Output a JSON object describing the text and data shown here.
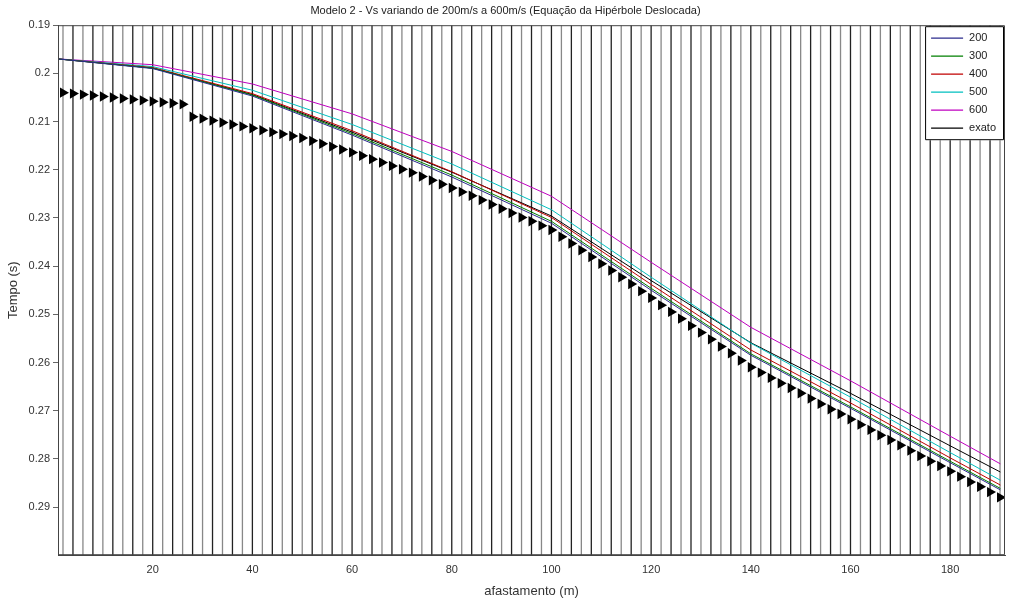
{
  "chart_data": {
    "type": "line",
    "title": "Modelo 2 - Vs variando de 200m/s a 600m/s (Equação da Hipérbole Deslocada)",
    "xlabel": "afastamento (m)",
    "ylabel": "Tempo (s)",
    "xlim": [
      1,
      191
    ],
    "xticks": [
      20,
      40,
      60,
      80,
      100,
      120,
      140,
      160,
      180
    ],
    "ylim": [
      0.3,
      0.19
    ],
    "yticks": [
      0.19,
      0.2,
      0.21,
      0.22,
      0.23,
      0.24,
      0.25,
      0.26,
      0.27,
      0.28,
      0.29
    ],
    "ref_lines": [
      {
        "axis": "x",
        "value": 2,
        "color": "#888888"
      },
      {
        "axis": "x",
        "value": 4,
        "color": "#222222"
      },
      {
        "axis": "x",
        "value": 6,
        "color": "#888888"
      },
      {
        "axis": "x",
        "value": 8,
        "color": "#222222"
      },
      {
        "axis": "x",
        "value": 10,
        "color": "#888888"
      },
      {
        "axis": "x",
        "value": 12,
        "color": "#222222"
      },
      {
        "axis": "x",
        "value": 14,
        "color": "#888888"
      },
      {
        "axis": "x",
        "value": 16,
        "color": "#222222"
      },
      {
        "axis": "x",
        "value": 18,
        "color": "#888888"
      },
      {
        "axis": "x",
        "value": 20,
        "color": "#222222"
      },
      {
        "axis": "x",
        "value": 22,
        "color": "#888888"
      },
      {
        "axis": "x",
        "value": 24,
        "color": "#222222"
      },
      {
        "axis": "x",
        "value": 26,
        "color": "#888888"
      },
      {
        "axis": "x",
        "value": 28,
        "color": "#222222"
      },
      {
        "axis": "x",
        "value": 30,
        "color": "#888888"
      },
      {
        "axis": "x",
        "value": 32,
        "color": "#222222"
      },
      {
        "axis": "x",
        "value": 34,
        "color": "#888888"
      },
      {
        "axis": "x",
        "value": 36,
        "color": "#222222"
      },
      {
        "axis": "x",
        "value": 38,
        "color": "#888888"
      },
      {
        "axis": "x",
        "value": 40,
        "color": "#222222"
      },
      {
        "axis": "x",
        "value": 42,
        "color": "#888888"
      },
      {
        "axis": "x",
        "value": 44,
        "color": "#222222"
      },
      {
        "axis": "x",
        "value": 46,
        "color": "#888888"
      },
      {
        "axis": "x",
        "value": 48,
        "color": "#222222"
      },
      {
        "axis": "x",
        "value": 50,
        "color": "#888888"
      },
      {
        "axis": "x",
        "value": 52,
        "color": "#222222"
      },
      {
        "axis": "x",
        "value": 54,
        "color": "#888888"
      },
      {
        "axis": "x",
        "value": 56,
        "color": "#222222"
      },
      {
        "axis": "x",
        "value": 58,
        "color": "#888888"
      },
      {
        "axis": "x",
        "value": 60,
        "color": "#222222"
      },
      {
        "axis": "x",
        "value": 62,
        "color": "#888888"
      },
      {
        "axis": "x",
        "value": 64,
        "color": "#222222"
      },
      {
        "axis": "x",
        "value": 66,
        "color": "#888888"
      },
      {
        "axis": "x",
        "value": 68,
        "color": "#222222"
      },
      {
        "axis": "x",
        "value": 70,
        "color": "#888888"
      },
      {
        "axis": "x",
        "value": 72,
        "color": "#222222"
      },
      {
        "axis": "x",
        "value": 74,
        "color": "#888888"
      },
      {
        "axis": "x",
        "value": 76,
        "color": "#222222"
      },
      {
        "axis": "x",
        "value": 78,
        "color": "#888888"
      },
      {
        "axis": "x",
        "value": 80,
        "color": "#222222"
      },
      {
        "axis": "x",
        "value": 82,
        "color": "#888888"
      },
      {
        "axis": "x",
        "value": 84,
        "color": "#222222"
      },
      {
        "axis": "x",
        "value": 86,
        "color": "#888888"
      },
      {
        "axis": "x",
        "value": 88,
        "color": "#222222"
      },
      {
        "axis": "x",
        "value": 90,
        "color": "#888888"
      },
      {
        "axis": "x",
        "value": 92,
        "color": "#222222"
      },
      {
        "axis": "x",
        "value": 94,
        "color": "#888888"
      },
      {
        "axis": "x",
        "value": 96,
        "color": "#222222"
      },
      {
        "axis": "x",
        "value": 98,
        "color": "#888888"
      },
      {
        "axis": "x",
        "value": 100,
        "color": "#222222"
      },
      {
        "axis": "x",
        "value": 102,
        "color": "#888888"
      },
      {
        "axis": "x",
        "value": 104,
        "color": "#222222"
      },
      {
        "axis": "x",
        "value": 106,
        "color": "#888888"
      },
      {
        "axis": "x",
        "value": 108,
        "color": "#222222"
      },
      {
        "axis": "x",
        "value": 110,
        "color": "#888888"
      },
      {
        "axis": "x",
        "value": 112,
        "color": "#222222"
      },
      {
        "axis": "x",
        "value": 114,
        "color": "#888888"
      },
      {
        "axis": "x",
        "value": 116,
        "color": "#222222"
      },
      {
        "axis": "x",
        "value": 118,
        "color": "#888888"
      },
      {
        "axis": "x",
        "value": 120,
        "color": "#222222"
      },
      {
        "axis": "x",
        "value": 122,
        "color": "#888888"
      },
      {
        "axis": "x",
        "value": 124,
        "color": "#222222"
      },
      {
        "axis": "x",
        "value": 126,
        "color": "#888888"
      },
      {
        "axis": "x",
        "value": 128,
        "color": "#222222"
      },
      {
        "axis": "x",
        "value": 130,
        "color": "#888888"
      },
      {
        "axis": "x",
        "value": 132,
        "color": "#222222"
      },
      {
        "axis": "x",
        "value": 134,
        "color": "#888888"
      },
      {
        "axis": "x",
        "value": 136,
        "color": "#222222"
      },
      {
        "axis": "x",
        "value": 138,
        "color": "#888888"
      },
      {
        "axis": "x",
        "value": 140,
        "color": "#222222"
      },
      {
        "axis": "x",
        "value": 142,
        "color": "#888888"
      },
      {
        "axis": "x",
        "value": 144,
        "color": "#222222"
      },
      {
        "axis": "x",
        "value": 146,
        "color": "#888888"
      },
      {
        "axis": "x",
        "value": 148,
        "color": "#222222"
      },
      {
        "axis": "x",
        "value": 150,
        "color": "#888888"
      },
      {
        "axis": "x",
        "value": 152,
        "color": "#222222"
      },
      {
        "axis": "x",
        "value": 154,
        "color": "#888888"
      },
      {
        "axis": "x",
        "value": 156,
        "color": "#222222"
      },
      {
        "axis": "x",
        "value": 158,
        "color": "#888888"
      },
      {
        "axis": "x",
        "value": 160,
        "color": "#222222"
      },
      {
        "axis": "x",
        "value": 162,
        "color": "#888888"
      },
      {
        "axis": "x",
        "value": 164,
        "color": "#222222"
      },
      {
        "axis": "x",
        "value": 166,
        "color": "#888888"
      },
      {
        "axis": "x",
        "value": 168,
        "color": "#222222"
      },
      {
        "axis": "x",
        "value": 170,
        "color": "#888888"
      },
      {
        "axis": "x",
        "value": 172,
        "color": "#222222"
      },
      {
        "axis": "x",
        "value": 174,
        "color": "#888888"
      },
      {
        "axis": "x",
        "value": 176,
        "color": "#222222"
      },
      {
        "axis": "x",
        "value": 178,
        "color": "#888888"
      },
      {
        "axis": "x",
        "value": 180,
        "color": "#222222"
      },
      {
        "axis": "x",
        "value": 182,
        "color": "#888888"
      },
      {
        "axis": "x",
        "value": 184,
        "color": "#222222"
      },
      {
        "axis": "x",
        "value": 186,
        "color": "#888888"
      },
      {
        "axis": "x",
        "value": 188,
        "color": "#222222"
      },
      {
        "axis": "x",
        "value": 190,
        "color": "#888888"
      }
    ],
    "grid": false,
    "legend": "top right",
    "marker": "none",
    "line_style": "solid",
    "series": [
      {
        "name": "200",
        "color": "#2a2a8c",
        "x": [
          1,
          20,
          40,
          60,
          80,
          100,
          120,
          140,
          160,
          180,
          190
        ],
        "values": [
          0.197,
          0.199,
          0.2047,
          0.2128,
          0.2215,
          0.2311,
          0.245,
          0.2585,
          0.2695,
          0.2808,
          0.2864
        ]
      },
      {
        "name": "300",
        "color": "#007f00",
        "x": [
          1,
          20,
          40,
          60,
          80,
          100,
          120,
          140,
          160,
          180,
          190
        ],
        "values": [
          0.197,
          0.1989,
          0.2045,
          0.2125,
          0.2211,
          0.2307,
          0.2446,
          0.2582,
          0.2692,
          0.2805,
          0.2861
        ]
      },
      {
        "name": "400",
        "color": "#c00000",
        "x": [
          1,
          20,
          40,
          60,
          80,
          100,
          120,
          140,
          160,
          180,
          190
        ],
        "values": [
          0.197,
          0.1988,
          0.2042,
          0.2119,
          0.2204,
          0.2299,
          0.2438,
          0.2574,
          0.2684,
          0.2798,
          0.2854
        ]
      },
      {
        "name": "500",
        "color": "#00bfbf",
        "x": [
          1,
          20,
          40,
          60,
          80,
          100,
          120,
          140,
          160,
          180,
          190
        ],
        "values": [
          0.197,
          0.1986,
          0.2035,
          0.2106,
          0.2188,
          0.2283,
          0.2423,
          0.256,
          0.2672,
          0.2787,
          0.2844
        ]
      },
      {
        "name": "600",
        "color": "#bf00bf",
        "x": [
          1,
          20,
          40,
          60,
          80,
          100,
          120,
          140,
          160,
          180,
          190
        ],
        "values": [
          0.197,
          0.1982,
          0.2022,
          0.2084,
          0.2162,
          0.2255,
          0.2392,
          0.2527,
          0.2638,
          0.2753,
          0.281
        ]
      },
      {
        "name": "exato",
        "color": "#000000",
        "x": [
          1,
          20,
          40,
          60,
          80,
          100,
          120,
          140,
          160,
          180,
          190
        ],
        "values": [
          0.197,
          0.1989,
          0.2044,
          0.2122,
          0.2205,
          0.2296,
          0.243,
          0.2559,
          0.2664,
          0.2773,
          0.2827
        ]
      },
      {
        "type": "scatter",
        "color": "#000000",
        "marker": "triangle",
        "x": [
          2,
          4,
          6,
          8,
          10,
          12,
          14,
          16,
          18,
          20,
          22,
          24,
          26,
          28,
          30,
          32,
          34,
          36,
          38,
          40,
          42,
          44,
          46,
          48,
          50,
          52,
          54,
          56,
          58,
          60,
          62,
          64,
          66,
          68,
          70,
          72,
          74,
          76,
          78,
          80,
          82,
          84,
          86,
          88,
          90,
          92,
          94,
          96,
          98,
          100,
          102,
          104,
          106,
          108,
          110,
          112,
          114,
          116,
          118,
          120,
          122,
          124,
          126,
          128,
          130,
          132,
          134,
          136,
          138,
          140,
          142,
          144,
          146,
          148,
          150,
          152,
          154,
          156,
          158,
          160,
          162,
          164,
          166,
          168,
          170,
          172,
          174,
          176,
          178,
          180,
          182,
          184,
          186,
          188,
          190
        ],
        "values": [
          0.204,
          0.2042,
          0.2044,
          0.2046,
          0.2048,
          0.205,
          0.2052,
          0.2054,
          0.2056,
          0.2058,
          0.206,
          0.2062,
          0.2064,
          0.209,
          0.2094,
          0.2098,
          0.2102,
          0.2106,
          0.211,
          0.2114,
          0.2118,
          0.2122,
          0.2126,
          0.213,
          0.2134,
          0.214,
          0.2146,
          0.2152,
          0.2158,
          0.2164,
          0.2171,
          0.2178,
          0.2185,
          0.2192,
          0.2199,
          0.2206,
          0.2214,
          0.2222,
          0.223,
          0.2238,
          0.2246,
          0.2254,
          0.2263,
          0.2272,
          0.2281,
          0.229,
          0.2299,
          0.2307,
          0.2316,
          0.2325,
          0.2339,
          0.2353,
          0.2367,
          0.2381,
          0.2395,
          0.2409,
          0.2423,
          0.2437,
          0.2452,
          0.2466,
          0.2481,
          0.2495,
          0.2509,
          0.2524,
          0.2538,
          0.2552,
          0.2567,
          0.2581,
          0.2596,
          0.261,
          0.2621,
          0.2632,
          0.2643,
          0.2653,
          0.2664,
          0.2675,
          0.2686,
          0.2697,
          0.2707,
          0.2718,
          0.2729,
          0.274,
          0.2751,
          0.2761,
          0.2772,
          0.2783,
          0.2794,
          0.2805,
          0.2815,
          0.2826,
          0.2837,
          0.2848,
          0.2858,
          0.2869,
          0.288
        ]
      }
    ]
  }
}
